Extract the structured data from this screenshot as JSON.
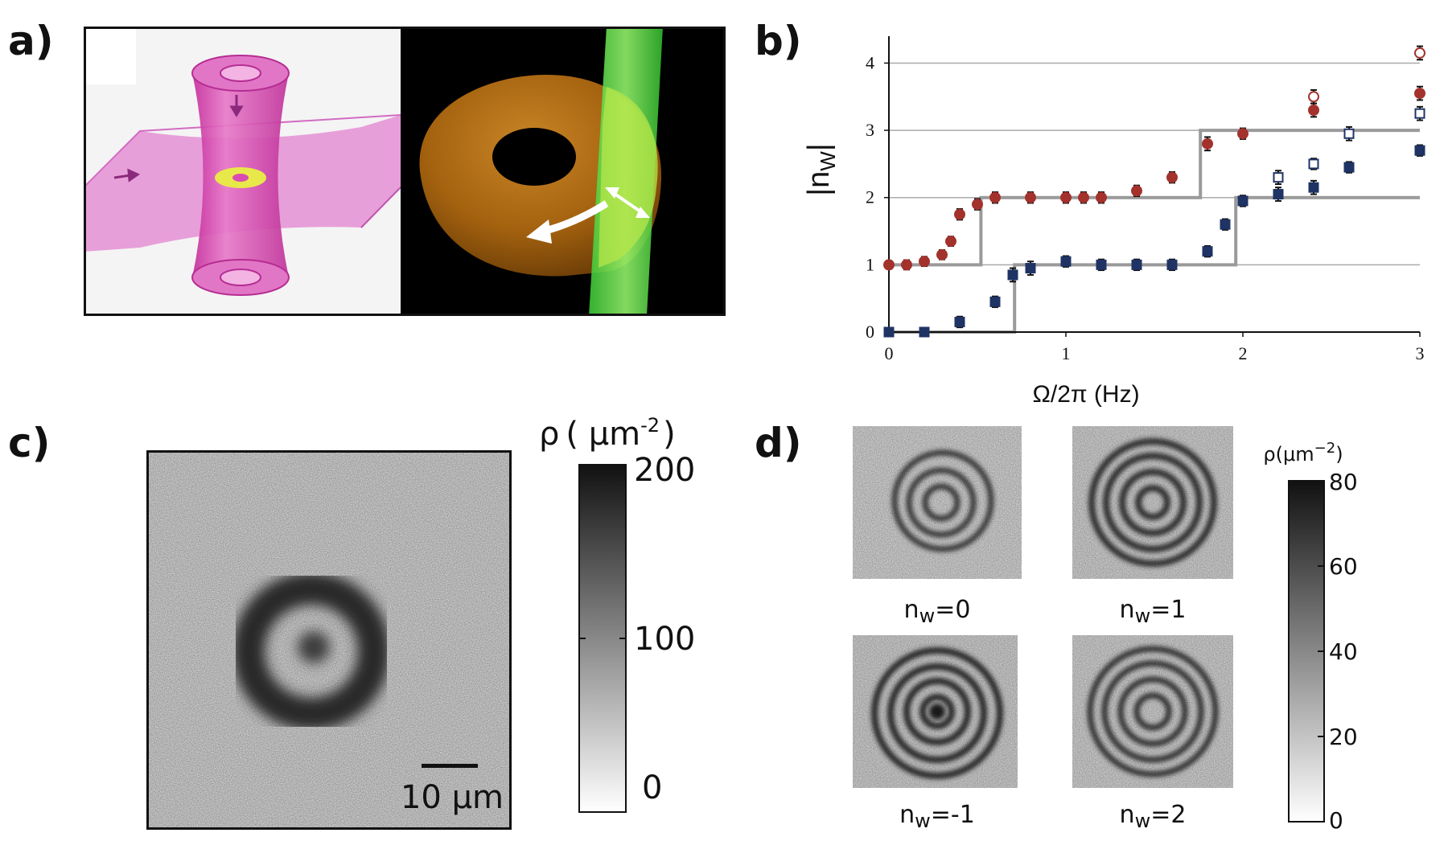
{
  "panel_labels": {
    "a": "a)",
    "b": "b)",
    "c": "c)",
    "d": "d)"
  },
  "colors": {
    "red_series": "#a3322d",
    "blue_series": "#1f3364",
    "step_line": "#9a9a9a",
    "grid": "#aaaaaa",
    "beam_pink": "#d946b5",
    "ring_yellow": "#e8e84a",
    "torus_orange": "#b06c17",
    "laser_green": "#7af060"
  },
  "chart_data": {
    "type": "scatter",
    "title": "",
    "xlabel": "Ω/2π (Hz)",
    "ylabel": "|n",
    "ylabel_sub": "W",
    "xlim": [
      0,
      3
    ],
    "ylim": [
      0,
      4.4
    ],
    "xticks": [
      "0",
      "1",
      "2",
      "3"
    ],
    "yticks": [
      "0",
      "1",
      "2",
      "3",
      "4"
    ],
    "grid": "horizontal",
    "series": [
      {
        "name": "red filled",
        "marker": "circle",
        "filled": true,
        "color": "#a3322d",
        "x": [
          0,
          0.1,
          0.2,
          0.3,
          0.35,
          0.4,
          0.5,
          0.6,
          0.8,
          1.0,
          1.1,
          1.2,
          1.4,
          1.6,
          1.8,
          2.0,
          2.4,
          3.0
        ],
        "y": [
          1.0,
          1.0,
          1.05,
          1.15,
          1.35,
          1.75,
          1.9,
          2.0,
          2.0,
          2.0,
          2.0,
          2.0,
          2.1,
          2.3,
          2.8,
          2.95,
          3.3,
          3.55
        ],
        "err": [
          0.06,
          0.07,
          0.07,
          0.07,
          0.07,
          0.08,
          0.08,
          0.08,
          0.08,
          0.08,
          0.08,
          0.08,
          0.08,
          0.08,
          0.1,
          0.08,
          0.1,
          0.1
        ]
      },
      {
        "name": "blue filled",
        "marker": "square",
        "filled": true,
        "color": "#1f3364",
        "x": [
          0,
          0.2,
          0.4,
          0.6,
          0.7,
          0.8,
          1.0,
          1.2,
          1.4,
          1.6,
          1.8,
          1.9,
          2.0,
          2.2,
          2.4,
          2.6,
          3.0
        ],
        "y": [
          0.0,
          0.0,
          0.15,
          0.45,
          0.85,
          0.95,
          1.05,
          1.0,
          1.0,
          1.0,
          1.2,
          1.6,
          1.95,
          2.05,
          2.15,
          2.45,
          2.7
        ],
        "err": [
          0.05,
          0.06,
          0.08,
          0.08,
          0.1,
          0.1,
          0.08,
          0.08,
          0.08,
          0.08,
          0.08,
          0.08,
          0.08,
          0.1,
          0.1,
          0.08,
          0.08
        ]
      },
      {
        "name": "red open",
        "marker": "circle",
        "filled": false,
        "color": "#a3322d",
        "x": [
          2.4,
          3.0
        ],
        "y": [
          3.5,
          4.15
        ],
        "err": [
          0.1,
          0.1
        ]
      },
      {
        "name": "blue open",
        "marker": "square",
        "filled": false,
        "color": "#1f3364",
        "x": [
          2.2,
          2.4,
          2.6,
          3.0
        ],
        "y": [
          2.3,
          2.5,
          2.95,
          3.25
        ],
        "err": [
          0.1,
          0.08,
          0.1,
          0.1
        ]
      }
    ],
    "step_lines": [
      {
        "name": "theory upper",
        "x": [
          0,
          0.52,
          0.52,
          1.76,
          1.76,
          3.0
        ],
        "y": [
          1,
          1,
          2,
          2,
          3,
          3
        ]
      },
      {
        "name": "theory lower",
        "x": [
          0,
          0.71,
          0.71,
          1.96,
          1.96,
          3.0
        ],
        "y": [
          0,
          0,
          1,
          1,
          2,
          2
        ]
      }
    ]
  },
  "panel_c": {
    "colorbar_title_rho": "ρ",
    "colorbar_title_unit": "( μm",
    "colorbar_title_exp": "-2",
    "colorbar_title_close": ")",
    "colorbar_ticks": [
      "200",
      "100",
      "0"
    ],
    "colorbar_range": [
      0,
      200
    ],
    "scalebar_label": "10 μm"
  },
  "panel_d": {
    "images": [
      {
        "prefix": "n",
        "sub": "w",
        "suffix": "=0"
      },
      {
        "prefix": "n",
        "sub": "w",
        "suffix": "=1"
      },
      {
        "prefix": "n",
        "sub": "w",
        "suffix": "=-1"
      },
      {
        "prefix": "n",
        "sub": "w",
        "suffix": "=2"
      }
    ],
    "colorbar_title": "ρ(μm",
    "colorbar_title_exp": "−2",
    "colorbar_title_close": ")",
    "colorbar_ticks": [
      "80",
      "60",
      "40",
      "20",
      "0"
    ],
    "colorbar_range": [
      0,
      80
    ]
  }
}
